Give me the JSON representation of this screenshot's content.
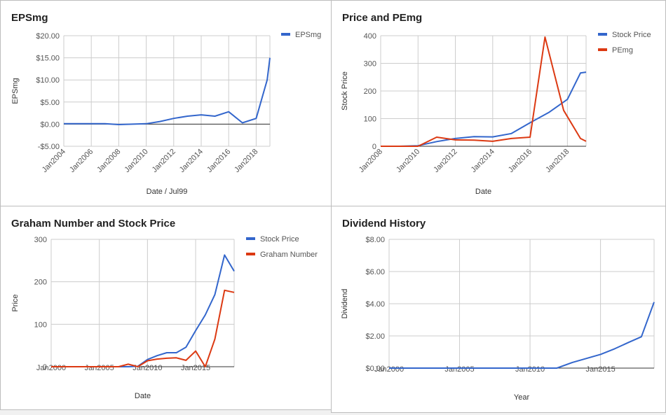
{
  "charts": {
    "colors": {
      "blue": "#3366cc",
      "red": "#dc3912"
    },
    "chart_data": [
      {
        "type": "line",
        "title": "EPSmg",
        "xlabel": "Date / Jul99",
        "ylabel": "EPSmg",
        "xlim": [
          2004,
          2019
        ],
        "ylim": [
          -5,
          20
        ],
        "x_ticks": [
          2004,
          2006,
          2008,
          2010,
          2012,
          2014,
          2016,
          2018
        ],
        "x_tick_labels": [
          "Jan2004",
          "Jan2006",
          "Jan2008",
          "Jan2010",
          "Jan2012",
          "Jan2014",
          "Jan2016",
          "Jan2018"
        ],
        "y_ticks": [
          -5,
          0,
          5,
          10,
          15,
          20
        ],
        "y_tick_labels": [
          "-$5.00",
          "$0.00",
          "$5.00",
          "$10.00",
          "$15.00",
          "$20.00"
        ],
        "legend": "right",
        "series": [
          {
            "name": "EPSmg",
            "color": "blue",
            "x": [
              2004,
              2005,
              2006,
              2007,
              2008,
              2009,
              2010,
              2011,
              2012,
              2013,
              2014,
              2015,
              2016,
              2017,
              2018,
              2018.8,
              2019
            ],
            "y": [
              0.1,
              0.1,
              0.1,
              0.1,
              -0.1,
              0.0,
              0.1,
              0.6,
              1.3,
              1.8,
              2.1,
              1.8,
              2.8,
              0.3,
              1.3,
              10.0,
              15.0
            ]
          }
        ]
      },
      {
        "type": "line",
        "title": "Price and PEmg",
        "xlabel": "Date",
        "ylabel": "Stock Price",
        "xlim": [
          2008,
          2019
        ],
        "ylim": [
          0,
          400
        ],
        "x_ticks": [
          2008,
          2010,
          2012,
          2014,
          2016,
          2018
        ],
        "x_tick_labels": [
          "Jan2008",
          "Jan2010",
          "Jan2012",
          "Jan2014",
          "Jan2016",
          "Jan2018"
        ],
        "y_ticks": [
          0,
          100,
          200,
          300,
          400
        ],
        "y_tick_labels": [
          "0",
          "100",
          "200",
          "300",
          "400"
        ],
        "legend": "right",
        "series": [
          {
            "name": "Stock Price",
            "color": "blue",
            "x": [
              2008,
              2009,
              2010,
              2011,
              2012,
              2013,
              2014,
              2015,
              2016,
              2017,
              2018,
              2018.7,
              2019
            ],
            "y": [
              0,
              0,
              2,
              17,
              28,
              35,
              34,
              46,
              85,
              122,
              170,
              265,
              268
            ]
          },
          {
            "name": "PEmg",
            "color": "red",
            "x": [
              2008,
              2009,
              2010,
              2011,
              2012,
              2013,
              2014,
              2015,
              2016,
              2016.8,
              2017.8,
              2018.7,
              2019
            ],
            "y": [
              0,
              0,
              0,
              33,
              23,
              22,
              18,
              28,
              33,
              395,
              130,
              28,
              18
            ]
          }
        ]
      },
      {
        "type": "line",
        "title": "Graham Number and Stock Price",
        "xlabel": "Date",
        "ylabel": "Price",
        "xlim": [
          2000,
          2019
        ],
        "ylim": [
          0,
          300
        ],
        "x_ticks": [
          2000,
          2005,
          2010,
          2015
        ],
        "x_tick_labels": [
          "Jan2000",
          "Jan2005",
          "Jan2010",
          "Jan2015"
        ],
        "y_ticks": [
          0,
          100,
          200,
          300
        ],
        "y_tick_labels": [
          "0",
          "100",
          "200",
          "300"
        ],
        "legend": "right",
        "series": [
          {
            "name": "Stock Price",
            "color": "blue",
            "x": [
              2000,
              2001,
              2002,
              2003,
              2004,
              2005,
              2006,
              2007,
              2008,
              2009,
              2010,
              2011,
              2012,
              2013,
              2014,
              2015,
              2016,
              2017,
              2018,
              2019
            ],
            "y": [
              0,
              0,
              0,
              0,
              0,
              0,
              0,
              0,
              0,
              1,
              17,
              26,
              33,
              33,
              46,
              85,
              122,
              170,
              263,
              225
            ]
          },
          {
            "name": "Graham Number",
            "color": "red",
            "x": [
              2000,
              2001,
              2002,
              2003,
              2004,
              2005,
              2006,
              2007,
              2008,
              2009,
              2010,
              2011,
              2012,
              2013,
              2014,
              2015,
              2016,
              2017,
              2018,
              2019
            ],
            "y": [
              0,
              0,
              0,
              0,
              0,
              0,
              0,
              0,
              6,
              0,
              14,
              18,
              20,
              21,
              15,
              37,
              0,
              65,
              180,
              175
            ]
          }
        ]
      },
      {
        "type": "line",
        "title": "Dividend History",
        "xlabel": "Year",
        "ylabel": "Dividend",
        "xlim": [
          2000,
          2018.8
        ],
        "ylim": [
          0,
          8
        ],
        "x_ticks": [
          2000,
          2005,
          2010,
          2015
        ],
        "x_tick_labels": [
          "Jan2000",
          "Jan2005",
          "Jan2010",
          "Jan2015"
        ],
        "y_ticks": [
          0,
          2,
          4,
          6,
          8
        ],
        "y_tick_labels": [
          "$0.00",
          "$2.00",
          "$4.00",
          "$6.00",
          "$8.00"
        ],
        "legend": "none",
        "series": [
          {
            "name": "Dividend",
            "color": "blue",
            "x": [
              2000,
              2011.9,
              2013,
              2014,
              2015,
              2016,
              2017,
              2017.9,
              2018.8
            ],
            "y": [
              0,
              0,
              0.35,
              0.6,
              0.85,
              1.2,
              1.6,
              1.95,
              4.1
            ]
          }
        ]
      }
    ]
  }
}
